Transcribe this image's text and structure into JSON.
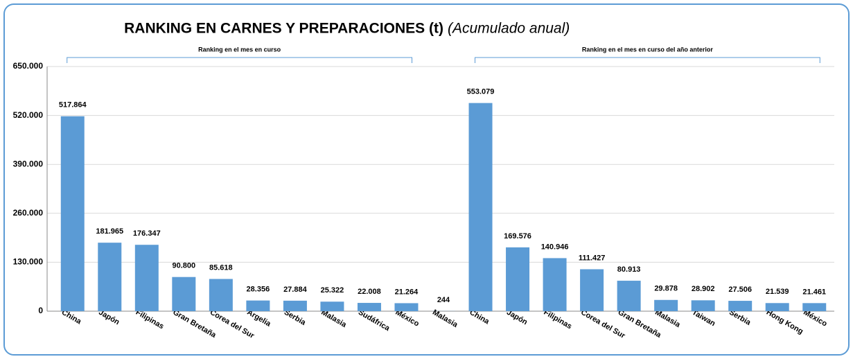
{
  "chart_data": {
    "type": "bar",
    "title": "RANKING EN CARNES Y PREPARACIONES (t)",
    "subtitle": "(Acumulado anual)",
    "annotations": [
      "Ranking en el mes en curso",
      "Ranking en el mes en curso del año anterior"
    ],
    "categories": [
      "China",
      "Japón",
      "Filipinas",
      "Gran Bretaña",
      "Corea del Sur",
      "Argelia",
      "Serbia",
      "Malasia",
      "Sudáfrica",
      "México",
      "Malasia",
      "China",
      "Japón",
      "Filipinas",
      "Corea del Sur",
      "Gran Bretaña",
      "Malasia",
      "Taiwan",
      "Serbia",
      "Hong Kong",
      "México"
    ],
    "values": [
      517864,
      181965,
      176347,
      90800,
      85618,
      28356,
      27884,
      25322,
      22008,
      21264,
      244,
      553079,
      169576,
      140946,
      111427,
      80913,
      29878,
      28902,
      27506,
      21539,
      21461
    ],
    "value_labels": [
      "517.864",
      "181.965",
      "176.347",
      "90.800",
      "85.618",
      "28.356",
      "27.884",
      "25.322",
      "22.008",
      "21.264",
      "244",
      "553.079",
      "169.576",
      "140.946",
      "111.427",
      "80.913",
      "29.878",
      "28.902",
      "27.506",
      "21.539",
      "21.461"
    ],
    "color": "#5b9bd5",
    "ylim": [
      0,
      650000
    ],
    "yticks": [
      0,
      {
        "value": 130000,
        "label": "130.000"
      },
      {
        "value": 260000,
        "label": "260.000"
      },
      {
        "value": 390000,
        "label": "390.000"
      },
      {
        "value": 520000,
        "label": "520.000"
      },
      {
        "value": 650000,
        "label": "650.000"
      }
    ],
    "grid": true
  }
}
